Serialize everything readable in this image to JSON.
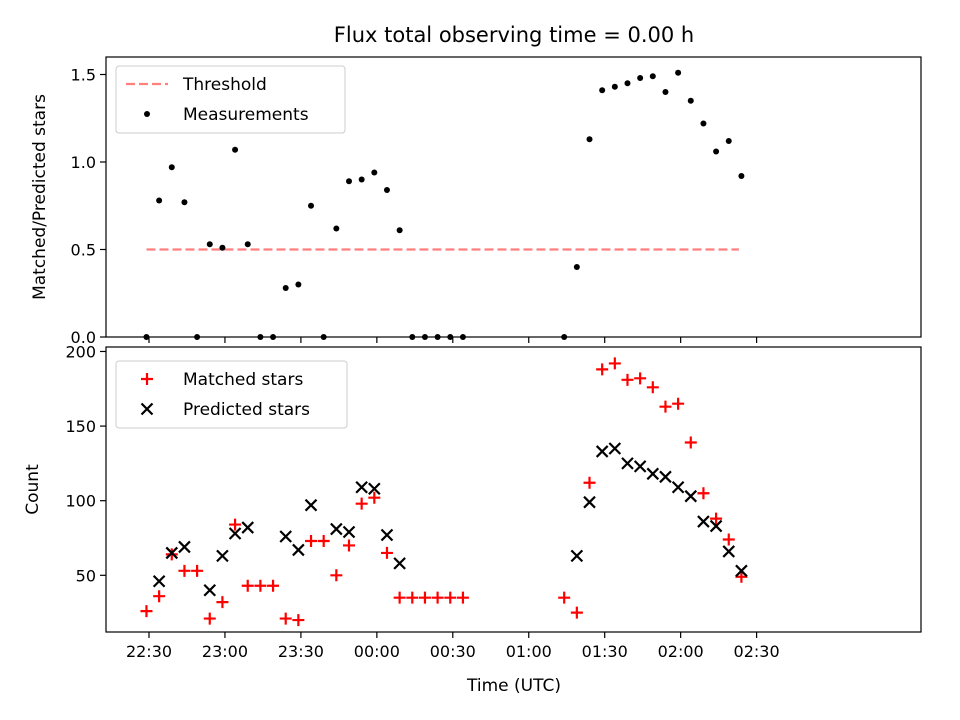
{
  "title": "Flux total observing time = 0.00 h",
  "x_axis": {
    "label": "Time (UTC)",
    "ticks": [
      "22:30",
      "23:00",
      "23:30",
      "00:00",
      "00:30",
      "01:00",
      "01:30",
      "02:00",
      "02:30"
    ]
  },
  "chart_data": [
    {
      "type": "line+scatter",
      "ylabel": "Matched/Predicted stars",
      "ylim": [
        0,
        1.6
      ],
      "yticks": [
        "0.0",
        "0.5",
        "1.0",
        "1.5"
      ],
      "grid": false,
      "legend": "top-left",
      "legend_entries": [
        "Threshold",
        "Measurements"
      ],
      "threshold": {
        "name": "Threshold",
        "value": 0.5,
        "color": "#ff7f7f",
        "style": "dashed",
        "x_start": "22:29",
        "x_end": "02:23"
      },
      "measurements": {
        "name": "Measurements",
        "color": "#000000",
        "x": [
          "22:29",
          "22:34",
          "22:39",
          "22:44",
          "22:49",
          "22:54",
          "22:59",
          "23:04",
          "23:09",
          "23:14",
          "23:19",
          "23:24",
          "23:29",
          "23:34",
          "23:39",
          "23:44",
          "23:49",
          "23:54",
          "23:59",
          "00:04",
          "00:09",
          "00:14",
          "00:19",
          "00:24",
          "00:29",
          "00:34",
          "01:14",
          "01:19",
          "01:24",
          "01:29",
          "01:34",
          "01:39",
          "01:44",
          "01:49",
          "01:54",
          "01:59",
          "02:04",
          "02:09",
          "02:14",
          "02:19",
          "02:24"
        ],
        "y": [
          0.0,
          0.78,
          0.97,
          0.77,
          0.0,
          0.53,
          0.51,
          1.07,
          0.53,
          0.0,
          0.0,
          0.28,
          0.3,
          0.75,
          0.0,
          0.62,
          0.89,
          0.9,
          0.94,
          0.84,
          0.61,
          0.0,
          0.0,
          0.0,
          0.0,
          0.0,
          0.0,
          0.4,
          1.13,
          1.41,
          1.43,
          1.45,
          1.48,
          1.49,
          1.4,
          1.51,
          1.35,
          1.22,
          1.06,
          1.12,
          0.92
        ]
      }
    },
    {
      "type": "scatter",
      "ylabel": "Count",
      "ylim": [
        12,
        203
      ],
      "yticks": [
        "50",
        "100",
        "150",
        "200"
      ],
      "grid": false,
      "legend": "top-left",
      "legend_entries": [
        "Matched stars",
        "Predicted stars"
      ],
      "x": [
        "22:29",
        "22:34",
        "22:39",
        "22:44",
        "22:49",
        "22:54",
        "22:59",
        "23:04",
        "23:09",
        "23:14",
        "23:19",
        "23:24",
        "23:29",
        "23:34",
        "23:39",
        "23:44",
        "23:49",
        "23:54",
        "23:59",
        "00:04",
        "00:09",
        "00:14",
        "00:19",
        "00:24",
        "00:29",
        "00:34",
        "01:14",
        "01:19",
        "01:24",
        "01:29",
        "01:34",
        "01:39",
        "01:44",
        "01:49",
        "01:54",
        "01:59",
        "02:04",
        "02:09",
        "02:14",
        "02:19",
        "02:24"
      ],
      "series": [
        {
          "name": "Matched stars",
          "marker": "+",
          "color": "#ff0000",
          "values": [
            26,
            36,
            64,
            53,
            53,
            21,
            32,
            84,
            43,
            43,
            43,
            21,
            20,
            73,
            73,
            50,
            70,
            98,
            102,
            65,
            35,
            35,
            35,
            35,
            35,
            35,
            35,
            25,
            112,
            188,
            192,
            181,
            182,
            176,
            163,
            165,
            139,
            105,
            88,
            74,
            49
          ]
        },
        {
          "name": "Predicted stars",
          "marker": "x",
          "color": "#000000",
          "values": [
            null,
            46,
            65,
            69,
            null,
            40,
            63,
            78,
            82,
            null,
            null,
            76,
            67,
            97,
            null,
            81,
            79,
            109,
            108,
            77,
            58,
            null,
            null,
            null,
            null,
            null,
            null,
            63,
            99,
            133,
            135,
            125,
            123,
            118,
            116,
            109,
            103,
            86,
            83,
            66,
            53
          ]
        }
      ]
    }
  ]
}
